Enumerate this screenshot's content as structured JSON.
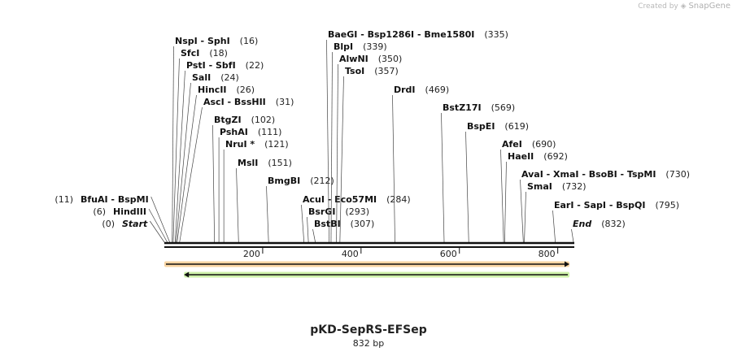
{
  "credit": {
    "created_by": "Created by",
    "brand": "SnapGene"
  },
  "sequence": {
    "name": "pKD-SepRS-EFSep",
    "length_label": "832 bp",
    "length": 832
  },
  "ruler": {
    "ticks": [
      200,
      400,
      600,
      800
    ]
  },
  "features": [
    {
      "name": "orange-feature",
      "color": "#f0a030",
      "start": 0,
      "end": 832,
      "direction": "forward"
    },
    {
      "name": "green-feature",
      "color": "#90e040",
      "start": 40,
      "end": 832,
      "direction": "reverse"
    }
  ],
  "sites": [
    {
      "side": "left",
      "label": "Start",
      "italic": true,
      "pos": "(0)",
      "bp": 0
    },
    {
      "side": "left",
      "label": "HindIII",
      "pos": "(6)",
      "bp": 6
    },
    {
      "side": "left",
      "label": "BfuAI  -  BspMI",
      "pos": "(11)",
      "bp": 11
    },
    {
      "side": "right",
      "label": "NspI  -  SphI",
      "pos": "(16)",
      "bp": 16
    },
    {
      "side": "right",
      "label": "SfcI",
      "pos": "(18)",
      "bp": 18
    },
    {
      "side": "right",
      "label": "PstI  -  SbfI",
      "pos": "(22)",
      "bp": 22
    },
    {
      "side": "right",
      "label": "SalI",
      "pos": "(24)",
      "bp": 24
    },
    {
      "side": "right",
      "label": "HincII",
      "pos": "(26)",
      "bp": 26
    },
    {
      "side": "right",
      "label": "AscI  -  BssHII",
      "pos": "(31)",
      "bp": 31
    },
    {
      "side": "right",
      "label": "BtgZI",
      "pos": "(102)",
      "bp": 102
    },
    {
      "side": "right",
      "label": "PshAI",
      "pos": "(111)",
      "bp": 111
    },
    {
      "side": "right",
      "label": "NruI *",
      "pos": "(121)",
      "bp": 121
    },
    {
      "side": "right",
      "label": "MslI",
      "pos": "(151)",
      "bp": 151
    },
    {
      "side": "right",
      "label": "BmgBI",
      "pos": "(212)",
      "bp": 212
    },
    {
      "side": "right",
      "label": "AcuI  -  Eco57MI",
      "pos": "(284)",
      "bp": 284
    },
    {
      "side": "right",
      "label": "BsrGI",
      "pos": "(293)",
      "bp": 293
    },
    {
      "side": "right",
      "label": "BstBI",
      "pos": "(307)",
      "bp": 307
    },
    {
      "side": "right",
      "label": "BaeGI  -  Bsp1286I  -  Bme1580I",
      "pos": "(335)",
      "bp": 335
    },
    {
      "side": "right",
      "label": "BlpI",
      "pos": "(339)",
      "bp": 339
    },
    {
      "side": "right",
      "label": "AlwNI",
      "pos": "(350)",
      "bp": 350
    },
    {
      "side": "right",
      "label": "TsoI",
      "pos": "(357)",
      "bp": 357
    },
    {
      "side": "right",
      "label": "DrdI",
      "pos": "(469)",
      "bp": 469
    },
    {
      "side": "right",
      "label": "BstZ17I",
      "pos": "(569)",
      "bp": 569
    },
    {
      "side": "right",
      "label": "BspEI",
      "pos": "(619)",
      "bp": 619
    },
    {
      "side": "right",
      "label": "AfeI",
      "pos": "(690)",
      "bp": 690
    },
    {
      "side": "right",
      "label": "HaeII",
      "pos": "(692)",
      "bp": 692
    },
    {
      "side": "right",
      "label": "AvaI  -  XmaI  -  BsoBI  -  TspMI",
      "pos": "(730)",
      "bp": 730
    },
    {
      "side": "right",
      "label": "SmaI",
      "pos": "(732)",
      "bp": 732
    },
    {
      "side": "right",
      "label": "EarI  -  SapI  -  BspQI",
      "pos": "(795)",
      "bp": 795
    },
    {
      "side": "right",
      "label": "End",
      "italic": true,
      "pos": "(832)",
      "bp": 832
    }
  ]
}
